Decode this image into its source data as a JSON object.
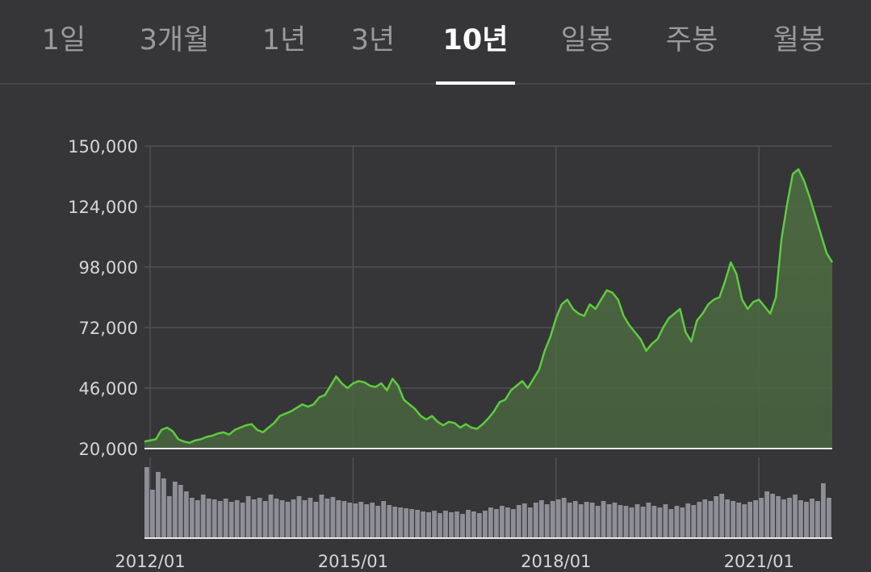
{
  "tabs": [
    {
      "label": "1일",
      "active": false
    },
    {
      "label": "3개월",
      "active": false
    },
    {
      "label": "1년",
      "active": false
    },
    {
      "label": "3년",
      "active": false
    },
    {
      "label": "10년",
      "active": true
    },
    {
      "label": "일봉",
      "active": false
    },
    {
      "label": "주봉",
      "active": false
    },
    {
      "label": "월봉",
      "active": false
    }
  ],
  "colors": {
    "background": "#363639",
    "line": "#5ccd3c",
    "area_fill": "#4c6a40",
    "volume": "#8e8e96",
    "grid": "#515155",
    "active_tab": "#ffffff",
    "inactive_tab": "#9a9a9d"
  },
  "chart_data": [
    {
      "type": "area",
      "title": "",
      "xlabel": "",
      "ylabel": "",
      "ylim": [
        20000,
        150000
      ],
      "y_ticks": [
        20000,
        46000,
        72000,
        98000,
        124000,
        150000
      ],
      "y_tick_labels": [
        "20,000",
        "46,000",
        "72,000",
        "98,000",
        "124,000",
        "150,000"
      ],
      "x_tick_labels": [
        "2012/01",
        "2015/01",
        "2018/01",
        "2021/01"
      ],
      "x_ticks": [
        "2012-01",
        "2015-01",
        "2018-01",
        "2021-01"
      ],
      "xlim": [
        "2011-12",
        "2022-02"
      ],
      "grid": true,
      "series": [
        {
          "x": [
            "2011-12",
            "2012-01",
            "2012-02",
            "2012-03",
            "2012-04",
            "2012-05",
            "2012-06",
            "2012-07",
            "2012-08",
            "2012-09",
            "2012-10",
            "2012-11",
            "2012-12",
            "2013-01",
            "2013-02",
            "2013-03",
            "2013-04",
            "2013-05",
            "2013-06",
            "2013-07",
            "2013-08",
            "2013-09",
            "2013-10",
            "2013-11",
            "2013-12",
            "2014-01",
            "2014-02",
            "2014-03",
            "2014-04",
            "2014-05",
            "2014-06",
            "2014-07",
            "2014-08",
            "2014-09",
            "2014-10",
            "2014-11",
            "2014-12",
            "2015-01",
            "2015-02",
            "2015-03",
            "2015-04",
            "2015-05",
            "2015-06",
            "2015-07",
            "2015-08",
            "2015-09",
            "2015-10",
            "2015-11",
            "2015-12",
            "2016-01",
            "2016-02",
            "2016-03",
            "2016-04",
            "2016-05",
            "2016-06",
            "2016-07",
            "2016-08",
            "2016-09",
            "2016-10",
            "2016-11",
            "2016-12",
            "2017-01",
            "2017-02",
            "2017-03",
            "2017-04",
            "2017-05",
            "2017-06",
            "2017-07",
            "2017-08",
            "2017-09",
            "2017-10",
            "2017-11",
            "2017-12",
            "2018-01",
            "2018-02",
            "2018-03",
            "2018-04",
            "2018-05",
            "2018-06",
            "2018-07",
            "2018-08",
            "2018-09",
            "2018-10",
            "2018-11",
            "2018-12",
            "2019-01",
            "2019-02",
            "2019-03",
            "2019-04",
            "2019-05",
            "2019-06",
            "2019-07",
            "2019-08",
            "2019-09",
            "2019-10",
            "2019-11",
            "2019-12",
            "2020-01",
            "2020-02",
            "2020-03",
            "2020-04",
            "2020-05",
            "2020-06",
            "2020-07",
            "2020-08",
            "2020-09",
            "2020-10",
            "2020-11",
            "2020-12",
            "2021-01",
            "2021-02",
            "2021-03",
            "2021-04",
            "2021-05",
            "2021-06",
            "2021-07",
            "2021-08",
            "2021-09",
            "2021-10",
            "2021-11",
            "2021-12",
            "2022-01",
            "2022-02"
          ],
          "values": [
            23000,
            23500,
            24000,
            28000,
            29000,
            27500,
            24000,
            23000,
            22500,
            23500,
            24000,
            25000,
            25500,
            26500,
            27000,
            26000,
            28000,
            29000,
            30000,
            30500,
            28000,
            27000,
            29000,
            31000,
            34000,
            35000,
            36000,
            37500,
            39000,
            38000,
            39000,
            42000,
            43000,
            47000,
            51000,
            48000,
            46000,
            48000,
            49000,
            48500,
            47000,
            46500,
            48000,
            45000,
            50000,
            47000,
            41000,
            39000,
            37000,
            34000,
            32500,
            34000,
            31500,
            30000,
            31500,
            31000,
            29000,
            30500,
            29000,
            28500,
            30500,
            33000,
            36000,
            40000,
            41000,
            45000,
            47000,
            49000,
            46000,
            50000,
            54000,
            62000,
            68000,
            76000,
            82000,
            84000,
            80000,
            78000,
            77000,
            82000,
            80000,
            84000,
            88000,
            87000,
            84000,
            77000,
            73000,
            70000,
            67000,
            62000,
            65000,
            67000,
            72000,
            76000,
            78000,
            80000,
            70000,
            66000,
            75000,
            78000,
            82000,
            84000,
            85000,
            92000,
            100000,
            95000,
            84000,
            80000,
            83000,
            84000,
            81000,
            78000,
            85000,
            110000,
            125000,
            138000,
            140000,
            135000,
            128000,
            120000,
            112000,
            104000,
            100000
          ]
        }
      ]
    },
    {
      "type": "bar",
      "title": "",
      "xlabel": "",
      "ylabel": "",
      "values": [
        88,
        60,
        82,
        74,
        52,
        70,
        66,
        58,
        50,
        47,
        54,
        49,
        48,
        46,
        49,
        45,
        47,
        44,
        52,
        48,
        50,
        46,
        54,
        49,
        47,
        45,
        48,
        52,
        47,
        50,
        45,
        54,
        49,
        51,
        47,
        46,
        44,
        43,
        45,
        42,
        44,
        40,
        46,
        41,
        39,
        38,
        37,
        36,
        35,
        33,
        32,
        34,
        31,
        34,
        32,
        33,
        30,
        35,
        33,
        31,
        34,
        38,
        36,
        40,
        38,
        36,
        41,
        43,
        38,
        44,
        47,
        42,
        46,
        48,
        50,
        44,
        46,
        42,
        45,
        44,
        40,
        46,
        42,
        44,
        41,
        40,
        38,
        42,
        39,
        44,
        40,
        38,
        42,
        36,
        40,
        38,
        43,
        41,
        45,
        48,
        46,
        52,
        55,
        48,
        46,
        44,
        42,
        45,
        47,
        50,
        58,
        55,
        52,
        48,
        50,
        54,
        47,
        45,
        49,
        46,
        68,
        50
      ]
    }
  ]
}
